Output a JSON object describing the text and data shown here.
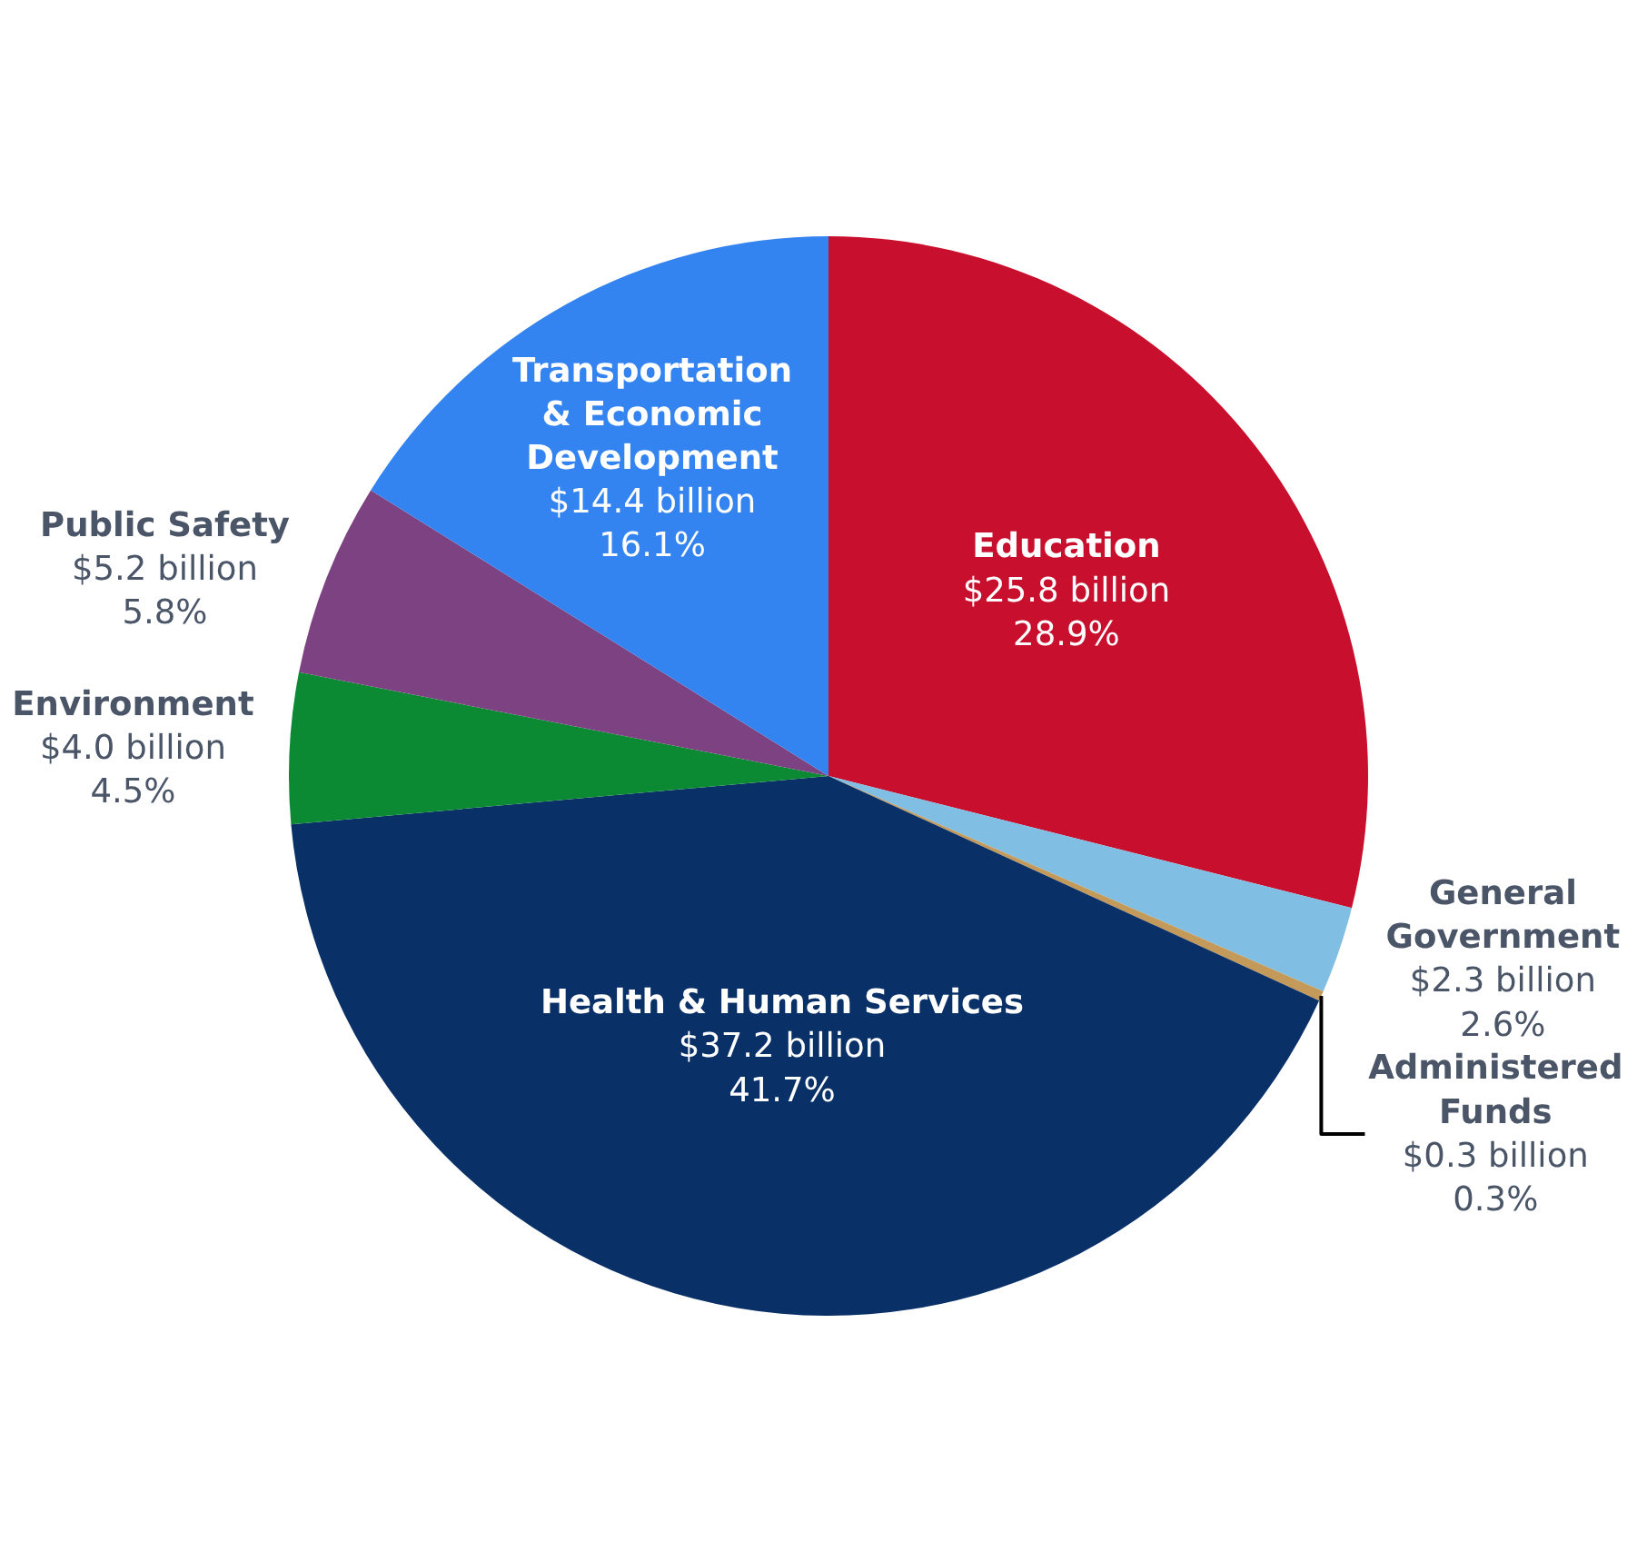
{
  "chart_data": {
    "type": "pie",
    "categories": [
      "Education",
      "General Government",
      "Administered Funds",
      "Health & Human Services",
      "Environment",
      "Public Safety",
      "Transportation & Economic Development"
    ],
    "values": [
      28.9,
      2.6,
      0.3,
      41.7,
      4.5,
      5.8,
      16.1
    ],
    "colors": [
      "#c8102e",
      "#80bfe3",
      "#c49a5a",
      "#0a3068",
      "#0b8a33",
      "#7d4282",
      "#3383f0"
    ],
    "value_labels": [
      "$25.8 billion\n28.9%",
      "$2.3 billion\n2.6%",
      "$0.3 billion\n0.3%",
      "$37.2 billion\n41.7%",
      "$4.0 billion\n4.5%",
      "$5.2 billion\n5.8%",
      "$14.4 billion\n16.1%"
    ]
  }
}
